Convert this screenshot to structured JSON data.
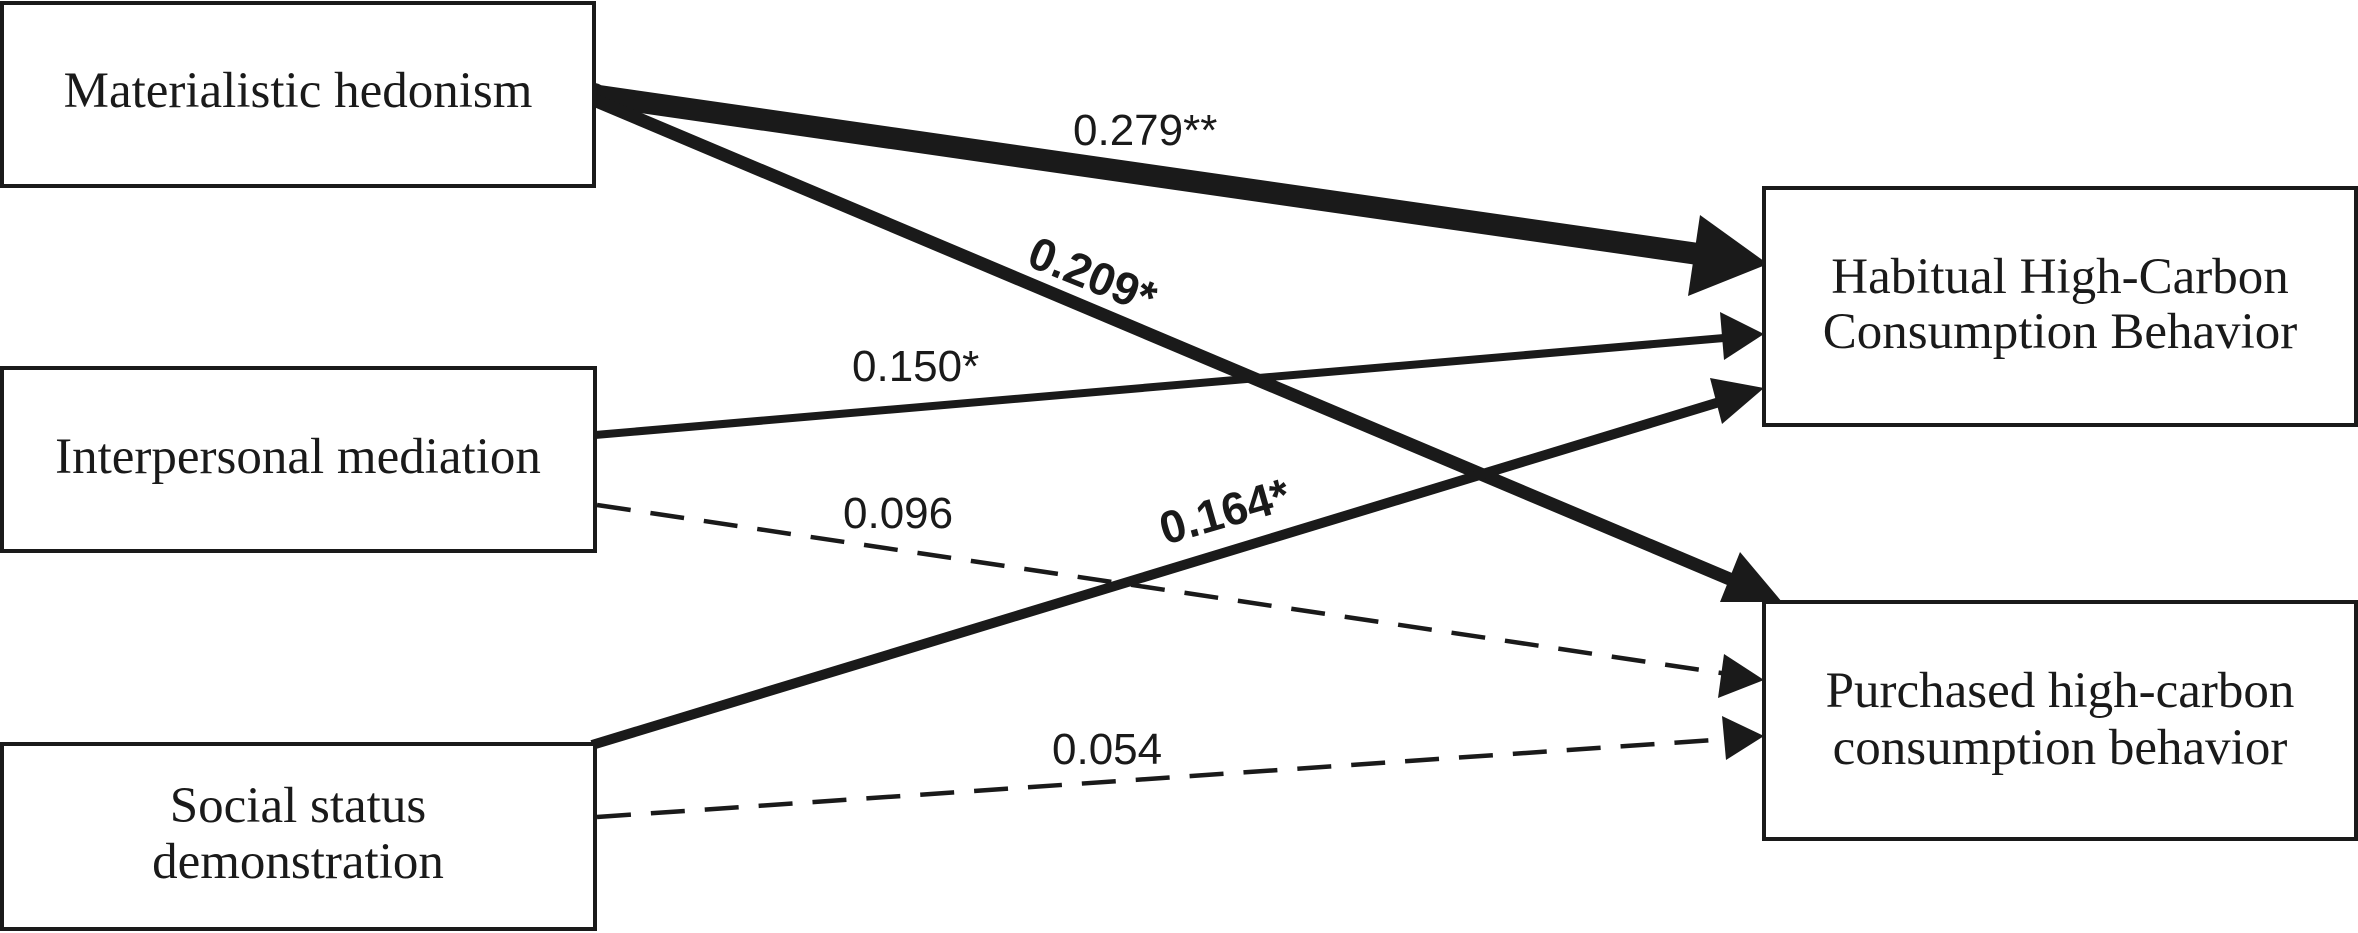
{
  "nodes": {
    "materialistic": {
      "lines": [
        "Materialistic hedonism"
      ]
    },
    "interpersonal": {
      "lines": [
        "Interpersonal mediation"
      ]
    },
    "social": {
      "lines": [
        "Social status",
        "demonstration"
      ]
    },
    "habitual": {
      "lines": [
        "Habitual High-Carbon",
        "Consumption Behavior"
      ]
    },
    "purchased": {
      "lines": [
        "Purchased high-carbon",
        "consumption behavior"
      ]
    }
  },
  "edges": {
    "mat_hab": {
      "from": "Materialistic hedonism",
      "to": "Habitual High-Carbon Consumption Behavior",
      "coefficient": "0.279**",
      "style": "solid"
    },
    "mat_pur": {
      "from": "Materialistic hedonism",
      "to": "Purchased high-carbon consumption behavior",
      "coefficient": "0.209*",
      "style": "solid"
    },
    "int_hab": {
      "from": "Interpersonal mediation",
      "to": "Habitual High-Carbon Consumption Behavior",
      "coefficient": "0.150*",
      "style": "solid"
    },
    "int_pur": {
      "from": "Interpersonal mediation",
      "to": "Purchased high-carbon consumption behavior",
      "coefficient": "0.096",
      "style": "dashed"
    },
    "soc_hab": {
      "from": "Social status demonstration",
      "to": "Habitual High-Carbon Consumption Behavior",
      "coefficient": "0.164*",
      "style": "solid"
    },
    "soc_pur": {
      "from": "Social status demonstration",
      "to": "Purchased high-carbon consumption behavior",
      "coefficient": "0.054",
      "style": "dashed"
    }
  },
  "colors": {
    "ink": "#1a1a1a",
    "background": "#ffffff"
  }
}
